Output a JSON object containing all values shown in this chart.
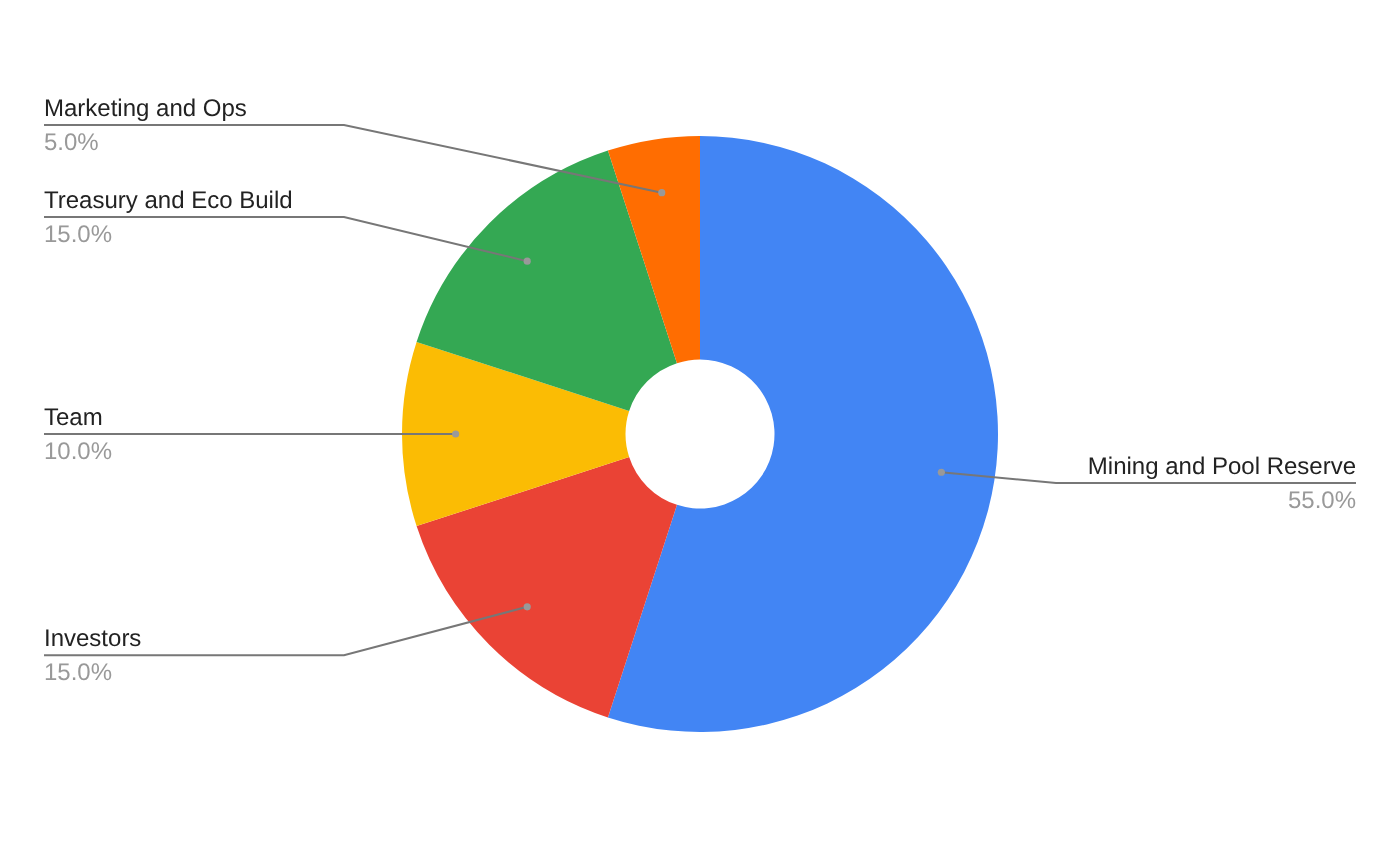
{
  "chart_data": {
    "type": "donut",
    "categories": [
      "Mining and Pool Reserve",
      "Investors",
      "Team",
      "Treasury and Eco Build",
      "Marketing and Ops"
    ],
    "values": [
      55,
      15,
      10,
      15,
      5
    ],
    "colors": [
      "#4285f4",
      "#ea4335",
      "#fbbc04",
      "#34a853",
      "#ff6d01"
    ],
    "value_labels": [
      "55.0%",
      "15.0%",
      "10.0%",
      "15.0%",
      "5.0%"
    ],
    "legend": false
  }
}
